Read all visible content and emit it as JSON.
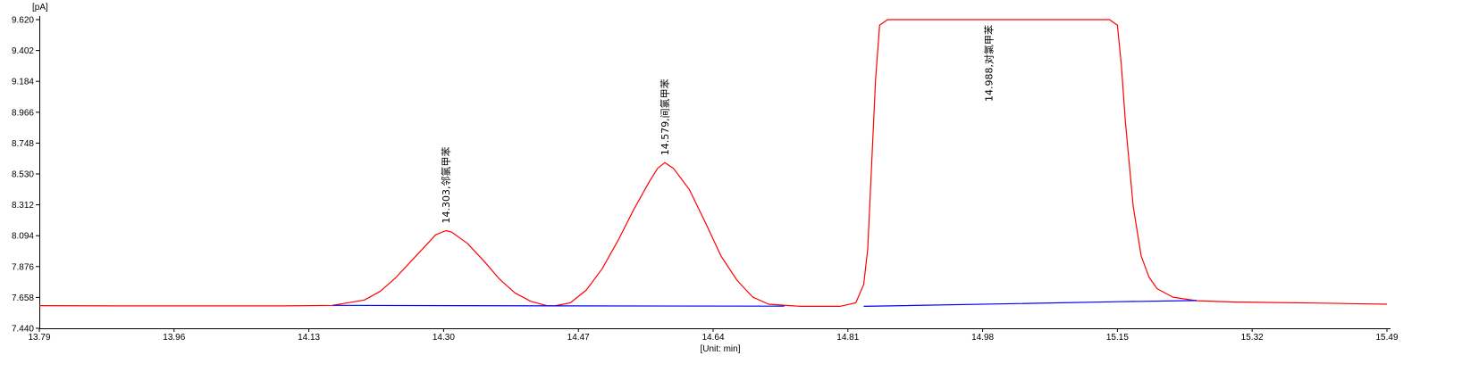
{
  "chart_data": {
    "type": "line",
    "ylabel": "[pA]",
    "xlabel": "[Unit: min]",
    "xlim": [
      13.79,
      15.49
    ],
    "ylim": [
      7.44,
      9.62
    ],
    "x_ticks": [
      "13.79",
      "13.96",
      "14.13",
      "14.30",
      "14.47",
      "14.64",
      "14.81",
      "14.98",
      "15.15",
      "15.32",
      "15.49"
    ],
    "y_ticks": [
      "7.440",
      "7.658",
      "7.876",
      "8.094",
      "8.312",
      "8.530",
      "8.748",
      "8.966",
      "9.184",
      "9.402",
      "9.620"
    ],
    "series": [
      {
        "color": "#ff0000",
        "x": [
          13.79,
          13.9,
          14.0,
          14.1,
          14.16,
          14.2,
          14.22,
          14.24,
          14.26,
          14.28,
          14.29,
          14.303,
          14.31,
          14.33,
          14.35,
          14.37,
          14.39,
          14.41,
          14.43,
          14.44,
          14.46,
          14.48,
          14.5,
          14.52,
          14.54,
          14.56,
          14.57,
          14.579,
          14.59,
          14.61,
          14.63,
          14.65,
          14.67,
          14.69,
          14.71,
          14.75,
          14.8,
          14.82,
          14.83,
          14.835,
          14.84,
          14.845,
          14.85,
          14.86,
          14.87,
          15.14,
          15.15,
          15.155,
          15.16,
          15.17,
          15.18,
          15.19,
          15.2,
          15.22,
          15.25,
          15.3,
          15.4,
          15.49
        ],
        "y": [
          7.6,
          7.598,
          7.598,
          7.598,
          7.602,
          7.64,
          7.7,
          7.8,
          7.92,
          8.04,
          8.1,
          8.13,
          8.12,
          8.04,
          7.92,
          7.79,
          7.69,
          7.63,
          7.6,
          7.598,
          7.62,
          7.71,
          7.86,
          8.06,
          8.28,
          8.48,
          8.57,
          8.61,
          8.57,
          8.42,
          8.19,
          7.95,
          7.78,
          7.66,
          7.61,
          7.595,
          7.595,
          7.62,
          7.75,
          8.0,
          8.6,
          9.2,
          9.58,
          9.62,
          9.62,
          9.62,
          9.58,
          9.3,
          8.9,
          8.3,
          7.95,
          7.8,
          7.72,
          7.66,
          7.635,
          7.625,
          7.618,
          7.61
        ]
      },
      {
        "color": "#0000ff",
        "x": [
          14.16,
          14.45,
          14.73
        ],
        "y": [
          7.602,
          7.598,
          7.596
        ]
      },
      {
        "color": "#0000ff",
        "x": [
          14.83,
          15.0,
          15.15,
          15.25
        ],
        "y": [
          7.595,
          7.612,
          7.628,
          7.636
        ]
      }
    ],
    "peaks": [
      {
        "x": 14.303,
        "y": 8.13,
        "label": "14.303,邻氯甲苯"
      },
      {
        "x": 14.579,
        "y": 8.61,
        "label": "14.579,间氯甲苯"
      },
      {
        "x": 14.988,
        "y": 9.62,
        "label": "14.988,对氯甲苯"
      }
    ],
    "grid": false,
    "legend": "none"
  }
}
